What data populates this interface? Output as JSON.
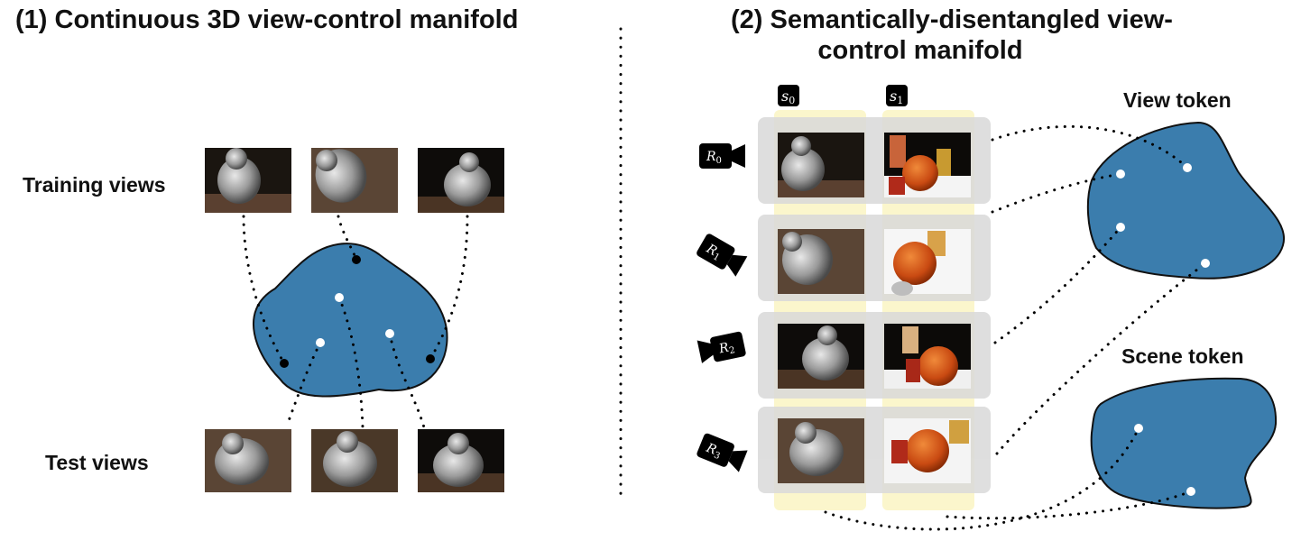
{
  "left_panel": {
    "title": "(1) Continuous 3D view-control manifold",
    "training_label": "Training views",
    "test_label": "Test views"
  },
  "right_panel": {
    "title_line1": "(2) Semantically-disentangled view-",
    "title_line2": "control manifold",
    "view_token_label": "View token",
    "scene_token_label": "Scene token",
    "scene_columns": [
      "s",
      "s"
    ],
    "scene_subscripts": [
      "0",
      "1"
    ],
    "camera_labels": [
      "R",
      "R",
      "R",
      "R"
    ],
    "camera_subscripts": [
      "0",
      "1",
      "2",
      "3"
    ]
  },
  "colors": {
    "manifold_blue": "#3b7dad",
    "column_highlight": "#fbf6cc",
    "row_band": "#d9d9d9",
    "dot_black": "#000000",
    "dot_white": "#ffffff"
  }
}
